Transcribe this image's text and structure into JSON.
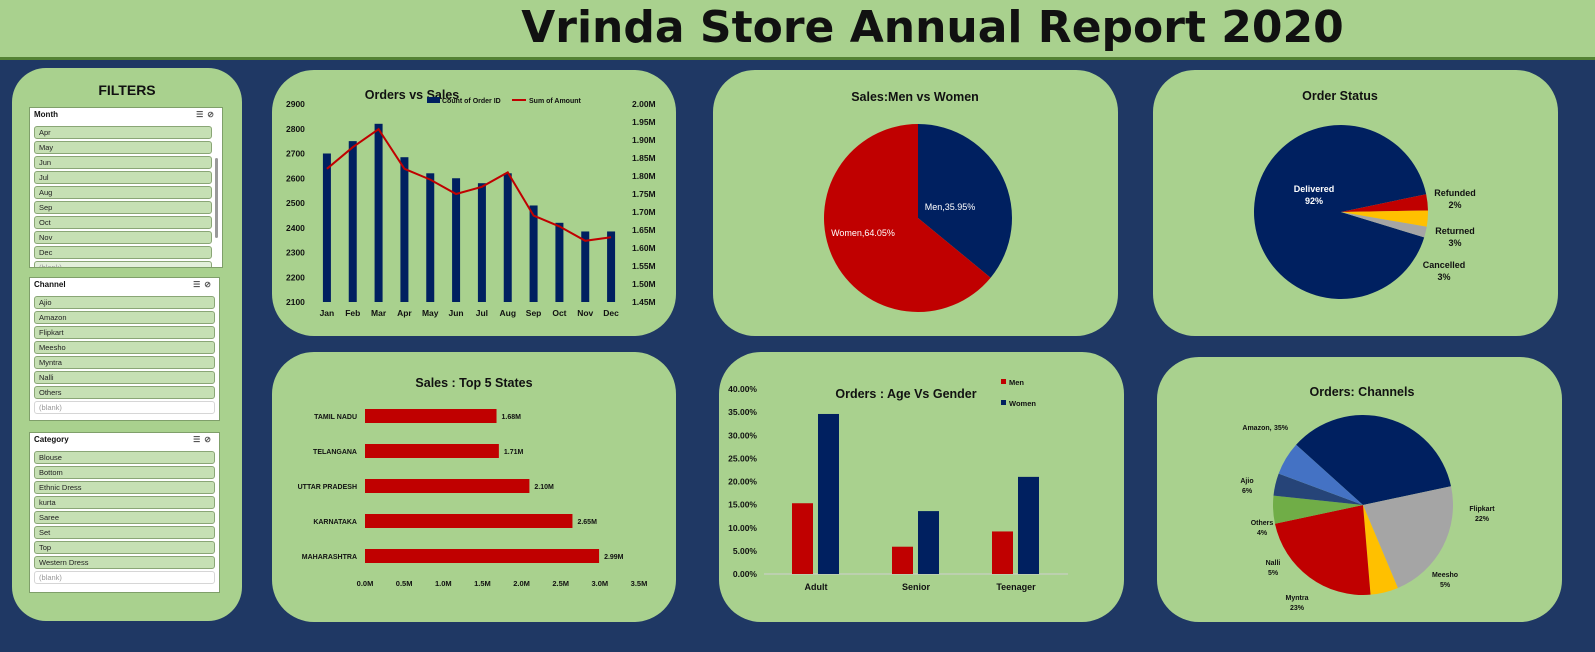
{
  "header": {
    "title": "Vrinda Store Annual Report 2020"
  },
  "filters": {
    "title": "FILTERS",
    "month": {
      "title": "Month",
      "items": [
        "Apr",
        "May",
        "Jun",
        "Jul",
        "Aug",
        "Sep",
        "Oct",
        "Nov",
        "Dec",
        "(blank)"
      ]
    },
    "channel": {
      "title": "Channel",
      "items": [
        "Ajio",
        "Amazon",
        "Flipkart",
        "Meesho",
        "Myntra",
        "Nalli",
        "Others",
        "(blank)"
      ]
    },
    "category": {
      "title": "Category",
      "items": [
        "Blouse",
        "Bottom",
        "Ethnic Dress",
        "kurta",
        "Saree",
        "Set",
        "Top",
        "Western Dress",
        "(blank)"
      ]
    }
  },
  "chart_data": [
    {
      "id": "orders-vs-sales",
      "type": "bar",
      "title": "Orders vs Sales",
      "categories": [
        "Jan",
        "Feb",
        "Mar",
        "Apr",
        "May",
        "Jun",
        "Jul",
        "Aug",
        "Sep",
        "Oct",
        "Nov",
        "Dec"
      ],
      "series": [
        {
          "name": "Count of Order ID",
          "type": "bar",
          "axis": "left",
          "color": "#002060",
          "values": [
            2700,
            2750,
            2820,
            2685,
            2620,
            2600,
            2580,
            2620,
            2490,
            2420,
            2385,
            2385
          ]
        },
        {
          "name": "Sum of Amount",
          "type": "line",
          "axis": "right",
          "color": "#c00000",
          "values": [
            1.82,
            1.88,
            1.93,
            1.82,
            1.79,
            1.75,
            1.77,
            1.81,
            1.69,
            1.66,
            1.62,
            1.63
          ]
        }
      ],
      "ylim_left": [
        2100,
        2900
      ],
      "yticks_left": [
        "2900",
        "2800",
        "2700",
        "2600",
        "2500",
        "2400",
        "2300",
        "2200",
        "2100"
      ],
      "ylim_right": [
        1.45,
        2.0
      ],
      "yticks_right": [
        "2.00M",
        "1.95M",
        "1.90M",
        "1.85M",
        "1.80M",
        "1.75M",
        "1.70M",
        "1.65M",
        "1.60M",
        "1.55M",
        "1.50M",
        "1.45M"
      ],
      "legend": "top"
    },
    {
      "id": "sales-men-women",
      "type": "pie",
      "title": "Sales:Men vs Women",
      "slices": [
        {
          "label": "Men,35.95%",
          "value": 35.95,
          "color": "#002060"
        },
        {
          "label": "Women,64.05%",
          "value": 64.05,
          "color": "#c00000"
        }
      ]
    },
    {
      "id": "order-status",
      "type": "pie",
      "title": "Order Status",
      "slices": [
        {
          "label": "Delivered",
          "pct": "92%",
          "value": 92,
          "color": "#002060"
        },
        {
          "label": "Cancelled",
          "pct": "3%",
          "value": 3,
          "color": "#c00000"
        },
        {
          "label": "Returned",
          "pct": "3%",
          "value": 3,
          "color": "#ffc000"
        },
        {
          "label": "Refunded",
          "pct": "2%",
          "value": 2,
          "color": "#a5a5a5"
        }
      ]
    },
    {
      "id": "sales-top-states",
      "type": "bar",
      "orientation": "horizontal",
      "title": "Sales : Top 5 States",
      "categories": [
        "TAMIL NADU",
        "TELANGANA",
        "UTTAR PRADESH",
        "KARNATAKA",
        "MAHARASHTRA"
      ],
      "values": [
        1.68,
        1.71,
        2.1,
        2.65,
        2.99
      ],
      "labels": [
        "1.68M",
        "1.71M",
        "2.10M",
        "2.65M",
        "2.99M"
      ],
      "xlim": [
        0,
        3.5
      ],
      "xticks": [
        "0.0M",
        "0.5M",
        "1.0M",
        "1.5M",
        "2.0M",
        "2.5M",
        "3.0M",
        "3.5M"
      ],
      "color": "#c00000"
    },
    {
      "id": "orders-age-gender",
      "type": "bar",
      "title": "Orders : Age Vs Gender",
      "categories": [
        "Adult",
        "Senior",
        "Teenager"
      ],
      "series": [
        {
          "name": "Men",
          "values": [
            15.3,
            5.9,
            9.2
          ],
          "color": "#c00000"
        },
        {
          "name": "Women",
          "values": [
            34.6,
            13.6,
            21.0
          ],
          "color": "#002060"
        }
      ],
      "ylim": [
        0,
        40
      ],
      "yticks": [
        "40.00%",
        "35.00%",
        "30.00%",
        "25.00%",
        "20.00%",
        "15.00%",
        "10.00%",
        "5.00%",
        "0.00%"
      ],
      "legend": "top-right"
    },
    {
      "id": "orders-channels",
      "type": "pie",
      "title": "Orders: Channels",
      "slices": [
        {
          "label": "Amazon,",
          "pct": "35%",
          "value": 35,
          "color": "#002060"
        },
        {
          "label": "Flipkart",
          "pct": "22%",
          "value": 22,
          "color": "#a5a5a5"
        },
        {
          "label": "Meesho",
          "pct": "5%",
          "value": 5,
          "color": "#ffc000"
        },
        {
          "label": "Myntra",
          "pct": "23%",
          "value": 23,
          "color": "#c00000"
        },
        {
          "label": "Nalli",
          "pct": "5%",
          "value": 5,
          "color": "#70ad47"
        },
        {
          "label": "Others",
          "pct": "4%",
          "value": 4,
          "color": "#264478"
        },
        {
          "label": "Ajio",
          "pct": "6%",
          "value": 6,
          "color": "#4472c4"
        }
      ]
    }
  ]
}
